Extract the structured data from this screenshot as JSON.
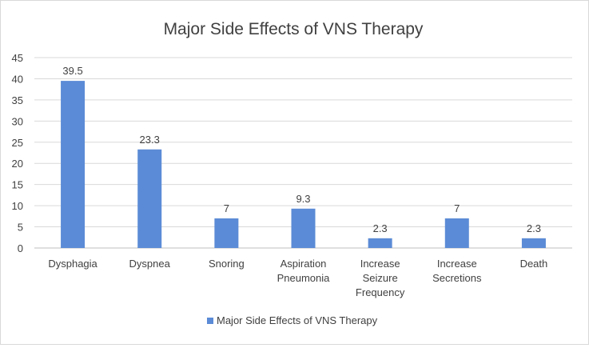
{
  "chart_data": {
    "type": "bar",
    "title": "Major Side Effects of VNS Therapy",
    "categories": [
      [
        "Dysphagia"
      ],
      [
        "Dyspnea"
      ],
      [
        "Snoring"
      ],
      [
        "Aspiration",
        "Pneumonia"
      ],
      [
        "Increase",
        "Seizure",
        "Frequency"
      ],
      [
        "Increase",
        "Secretions"
      ],
      [
        "Death"
      ]
    ],
    "series": [
      {
        "name": "Major Side Effects of VNS Therapy",
        "values": [
          39.5,
          23.3,
          7,
          9.3,
          2.3,
          7,
          2.3
        ],
        "color": "#5b8bd6"
      }
    ],
    "data_labels": [
      "39.5",
      "23.3",
      "7",
      "9.3",
      "2.3",
      "7",
      "2.3"
    ],
    "ylim": [
      0,
      45
    ],
    "yticks": [
      0,
      5,
      10,
      15,
      20,
      25,
      30,
      35,
      40,
      45
    ],
    "grid": true,
    "legend_position": "bottom",
    "xlabel": "",
    "ylabel": ""
  }
}
